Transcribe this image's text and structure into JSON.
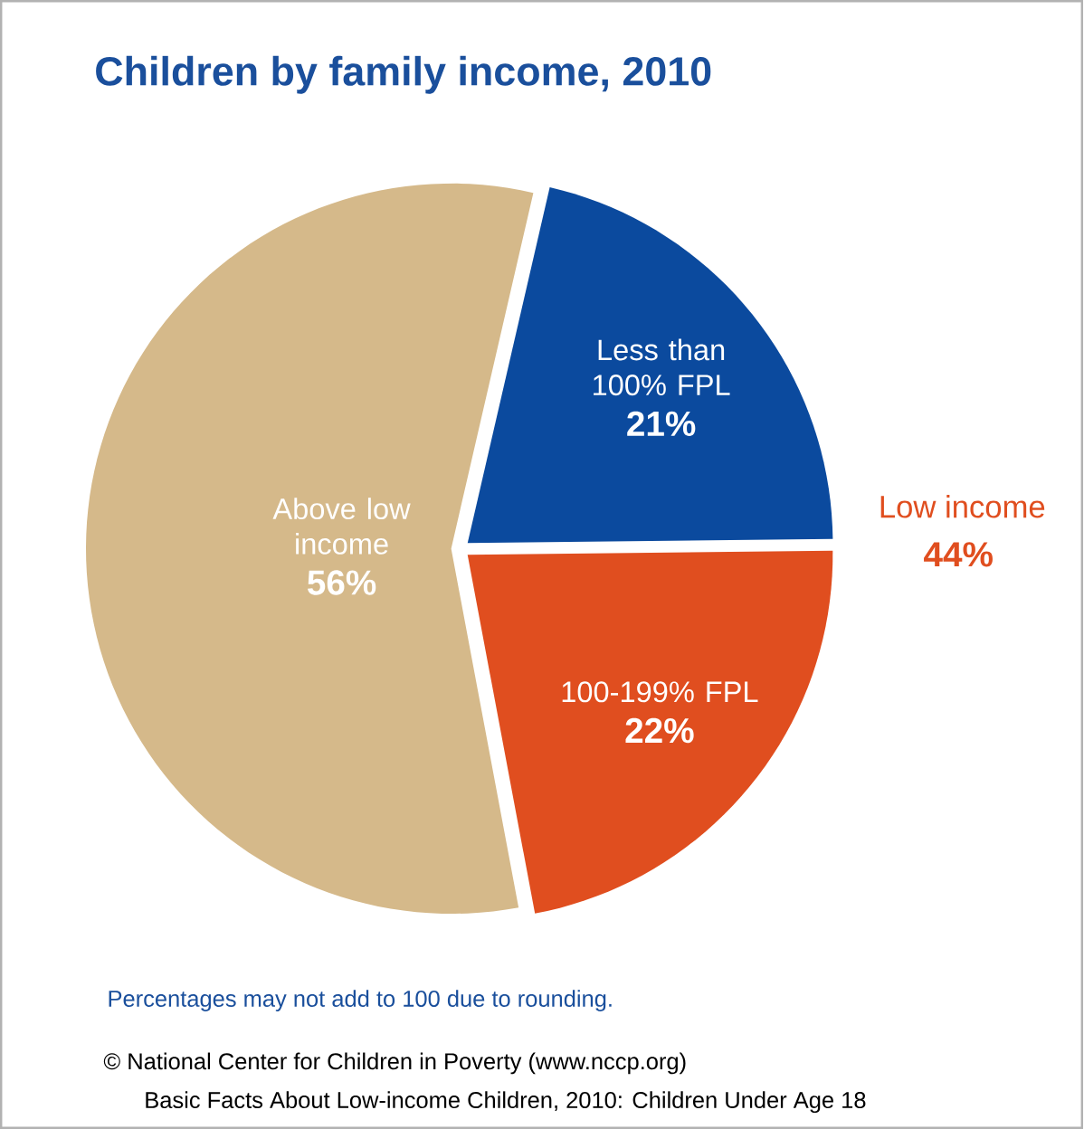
{
  "chart_data": {
    "type": "pie",
    "title": "Children by family income, 2010",
    "categories": [
      "Less than 100% FPL",
      "100-199% FPL",
      "Above low income"
    ],
    "values": [
      21,
      22,
      56
    ],
    "value_labels": [
      "21%",
      "22%",
      "56%"
    ],
    "colors": [
      "#0b4a9e",
      "#e04e1f",
      "#d5b98a"
    ],
    "annotations": [
      "Low income",
      "44%",
      "Percentages may not add to 100 due to rounding.",
      "© National Center for Children in Poverty (www.nccp.org)",
      "Basic Facts About Low-income Children, 2010: Children Under Age 18"
    ]
  }
}
